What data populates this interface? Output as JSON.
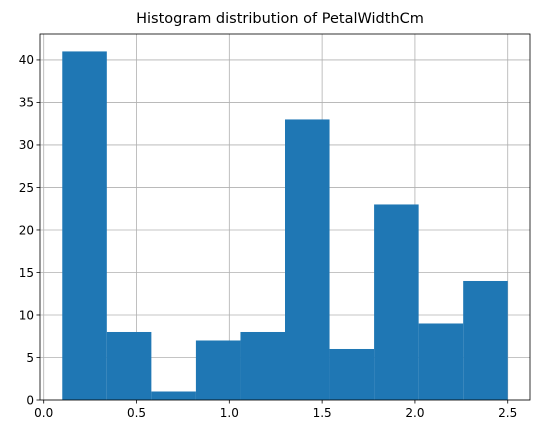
{
  "chart_data": {
    "type": "bar",
    "title": "Histogram distribution of PetalWidthCm",
    "xlabel": "",
    "ylabel": "",
    "bin_edges": [
      0.1,
      0.34,
      0.58,
      0.82,
      1.06,
      1.3,
      1.54,
      1.78,
      2.02,
      2.26,
      2.5
    ],
    "values": [
      41,
      8,
      1,
      7,
      8,
      33,
      6,
      23,
      9,
      14
    ],
    "xlim": [
      -0.02,
      2.62
    ],
    "ylim": [
      0,
      43.05
    ],
    "x_ticks": [
      0.0,
      0.5,
      1.0,
      1.5,
      2.0,
      2.5
    ],
    "x_tick_labels": [
      "0.0",
      "0.5",
      "1.0",
      "1.5",
      "2.0",
      "2.5"
    ],
    "y_ticks": [
      0,
      5,
      10,
      15,
      20,
      25,
      30,
      35,
      40
    ],
    "y_tick_labels": [
      "0",
      "5",
      "10",
      "15",
      "20",
      "25",
      "30",
      "35",
      "40"
    ],
    "grid": true,
    "bar_color": "#1f77b4"
  }
}
